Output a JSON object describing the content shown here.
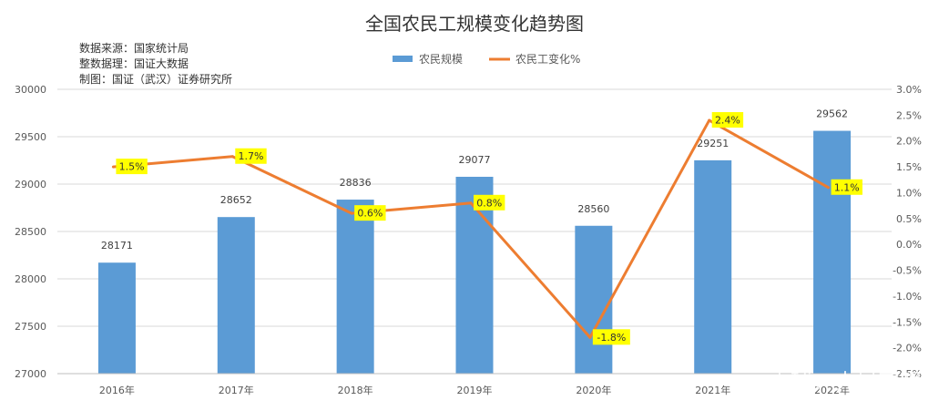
{
  "title": "全国农民工规模变化趋势图",
  "source_lines": [
    "数据来源：国家统计局",
    "整数据理：国证大数据",
    "制图：国证（武汉）证券研究所"
  ],
  "watermark": "雪球：火星宏观",
  "chart_data": {
    "type": "bar+line",
    "categories": [
      "2016年",
      "2017年",
      "2018年",
      "2019年",
      "2020年",
      "2021年",
      "2022年"
    ],
    "series": [
      {
        "name": "农民规模",
        "type": "bar",
        "axis": "left",
        "color": "#5b9bd5",
        "values": [
          28171,
          28652,
          28836,
          29077,
          28560,
          29251,
          29562
        ],
        "labels": [
          "28171",
          "28652",
          "28836",
          "29077",
          "28560",
          "29251",
          "29562"
        ]
      },
      {
        "name": "农民工变化%",
        "type": "line",
        "axis": "right",
        "color": "#ed7d31",
        "values": [
          1.5,
          1.7,
          0.6,
          0.8,
          -1.8,
          2.4,
          1.1
        ],
        "labels": [
          "1.5%",
          "1.7%",
          "0.6%",
          "0.8%",
          "-1.8%",
          "2.4%",
          "1.1%"
        ]
      }
    ],
    "y_left": {
      "ylim": [
        27000,
        30000
      ],
      "ticks": [
        "27000",
        "27500",
        "28000",
        "28500",
        "29000",
        "29500",
        "30000"
      ]
    },
    "y_right": {
      "ylim": [
        -2.5,
        3.0
      ],
      "ticks": [
        "-2.5%",
        "-2.0%",
        "-1.5%",
        "-1.0%",
        "-0.5%",
        "0.0%",
        "0.5%",
        "1.0%",
        "1.5%",
        "2.0%",
        "2.5%",
        "3.0%"
      ]
    },
    "grid": true,
    "legend": "top",
    "label_highlight_color": "#ffff00"
  }
}
